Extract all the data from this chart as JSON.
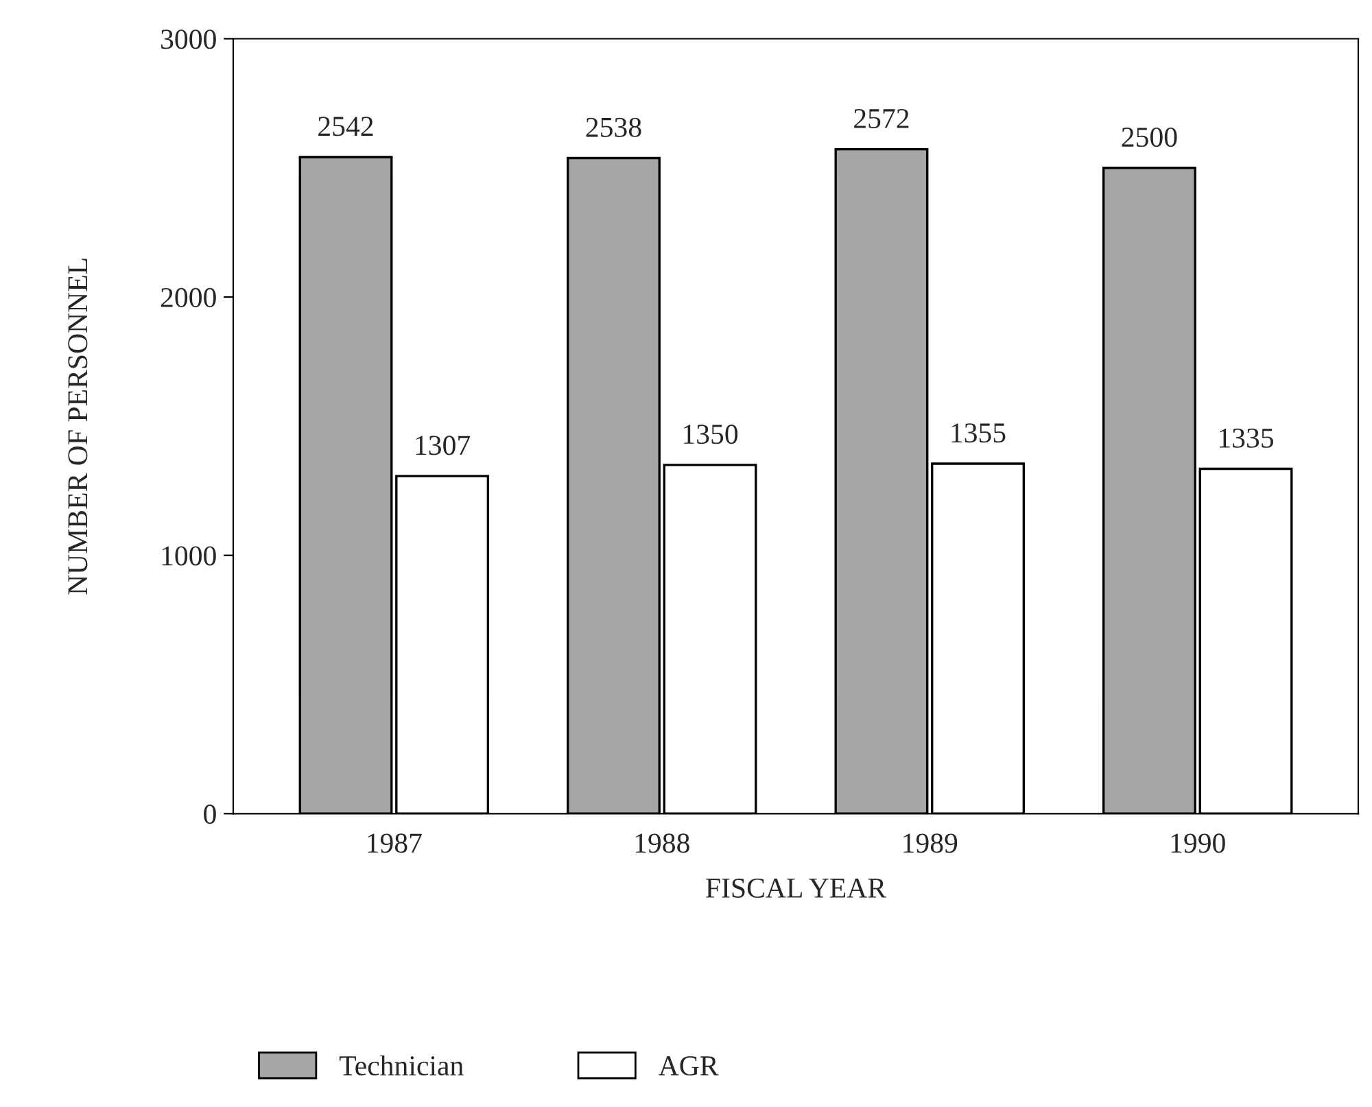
{
  "chart_data": {
    "type": "bar",
    "categories": [
      "1987",
      "1988",
      "1989",
      "1990"
    ],
    "series": [
      {
        "name": "Technician",
        "color": "#a6a6a6",
        "values": [
          2542,
          2538,
          2572,
          2500
        ]
      },
      {
        "name": "AGR",
        "color": "#ffffff",
        "values": [
          1307,
          1350,
          1355,
          1335
        ]
      }
    ],
    "xlabel": "FISCAL YEAR",
    "ylabel": "NUMBER OF PERSONNEL",
    "ylim": [
      0,
      3000
    ],
    "yticks": [
      0,
      1000,
      2000,
      3000
    ],
    "data_labels": true,
    "grid": false,
    "legend": "bottom"
  }
}
